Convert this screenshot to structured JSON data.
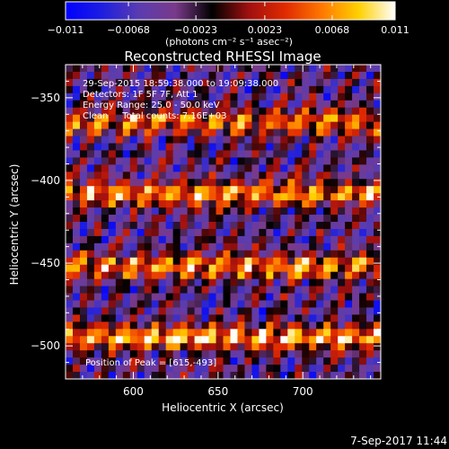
{
  "colorbar": {
    "ticks": [
      "-0.011",
      "-0.0068",
      "-0.0023",
      "0.0023",
      "0.0068",
      "0.011"
    ],
    "range": [
      -0.011,
      0.011
    ],
    "unit_label": "(photons cm⁻² s⁻¹ asec⁻²)",
    "colormap": [
      "#0000ff",
      "#1e1ee0",
      "#5a3cb0",
      "#7a3a8a",
      "#000000",
      "#a01010",
      "#e02a00",
      "#ff7800",
      "#ffd000",
      "#ffffff"
    ]
  },
  "chart_data": {
    "type": "heatmap",
    "title": "Reconstructed RHESSI Image",
    "xlabel": "Heliocentric X (arcsec)",
    "ylabel": "Heliocentric Y (arcsec)",
    "xlim": [
      560,
      746
    ],
    "ylim": [
      -520,
      -330
    ],
    "xticks": [
      600,
      650,
      700
    ],
    "yticks": [
      -350,
      -400,
      -450,
      -500
    ],
    "annotations": [
      "29-Sep-2015 18:59:38.000 to 19:09:38.000",
      "Detectors: 1F 5F 7F, Att 1",
      "Energy Range: 25.0 - 50.0 keV",
      "Clean     Total counts: 7.16E+03"
    ],
    "peak_label": "Position of Peak = [615,-493]",
    "peak": [
      615,
      -493
    ],
    "bands": [
      {
        "y": -365,
        "amplitude": 0.0085
      },
      {
        "y": -408,
        "amplitude": 0.01
      },
      {
        "y": -452,
        "amplitude": 0.0095
      },
      {
        "y": -495,
        "amplitude": 0.011
      }
    ]
  },
  "footer": {
    "timestamp": "7-Sep-2017 11:44"
  }
}
